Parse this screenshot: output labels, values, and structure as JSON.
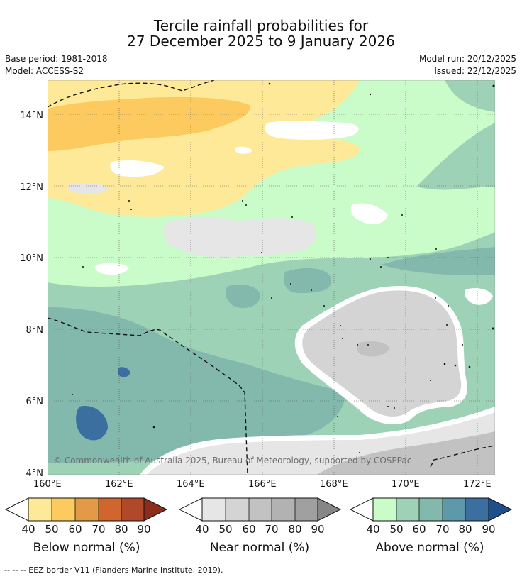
{
  "header": {
    "title_line1": "Tercile rainfall probabilities for",
    "title_line2": "27 December 2025 to 9 January 2026",
    "base_period": "Base period: 1981-2018",
    "model": "Model: ACCESS-S2",
    "model_run": "Model run: 20/12/2025",
    "issued": "Issued: 22/12/2025"
  },
  "map": {
    "lat_labels": [
      "14°N",
      "12°N",
      "10°N",
      "8°N",
      "6°N",
      "4°N"
    ],
    "lon_labels": [
      "160°E",
      "162°E",
      "164°E",
      "166°E",
      "168°E",
      "170°E",
      "172°E"
    ],
    "copyright": "© Commonwealth of Australia 2025, Bureau of Meteorology, supported by COSPPac"
  },
  "legends": {
    "below": {
      "label": "Below normal (%)",
      "ticks": [
        "40",
        "50",
        "60",
        "70",
        "80",
        "90"
      ],
      "colors": [
        "#fee999",
        "#fdca60",
        "#e39a46",
        "#d0652e",
        "#b0492a",
        "#8c2d1c"
      ]
    },
    "near": {
      "label": "Near normal (%)",
      "ticks": [
        "40",
        "50",
        "60",
        "70",
        "80",
        "90"
      ],
      "colors": [
        "#e6e6e6",
        "#d4d4d4",
        "#c2c2c2",
        "#b2b2b2",
        "#a0a0a0",
        "#868686"
      ]
    },
    "above": {
      "label": "Above normal (%)",
      "ticks": [
        "40",
        "50",
        "60",
        "70",
        "80",
        "90"
      ],
      "colors": [
        "#c9fcc9",
        "#9ed2b7",
        "#82b9ac",
        "#5d99a8",
        "#3a6f9f",
        "#1e4f8c"
      ]
    }
  },
  "footer": {
    "eez_note": "--  --  -- EEZ border V11 (Flanders Marine Institute, 2019)."
  }
}
